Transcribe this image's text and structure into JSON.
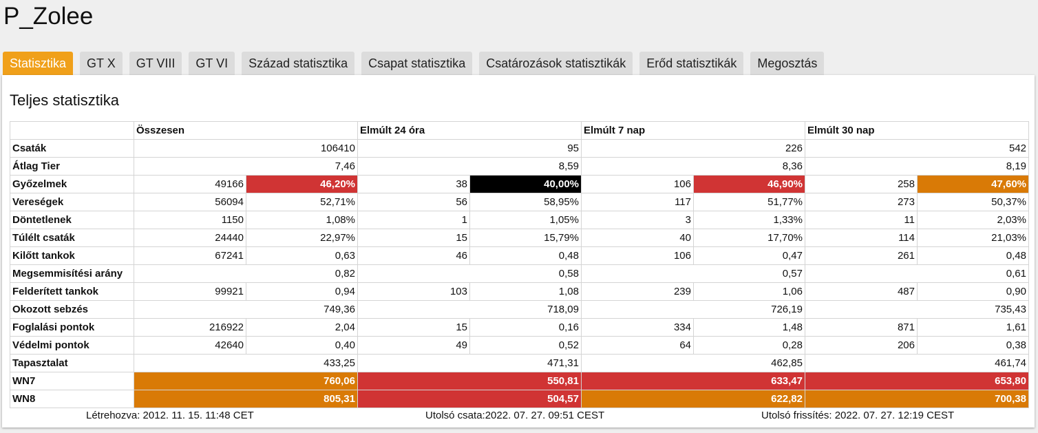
{
  "title": "P_Zolee",
  "tabs": [
    "Statisztika",
    "GT X",
    "GT VIII",
    "GT VI",
    "Század statisztika",
    "Csapat statisztika",
    "Csatározások statisztikák",
    "Erőd statisztikák",
    "Megosztás"
  ],
  "active_tab": "Statisztika",
  "section_title": "Teljes statisztika",
  "columns": [
    "Összesen",
    "Elmúlt 24 óra",
    "Elmúlt 7 nap",
    "Elmúlt 30 nap"
  ],
  "colors": {
    "red": "#d03434",
    "black": "#000000",
    "orange": "#d97a06",
    "tab_active": "#f0a01a"
  },
  "rows": [
    {
      "label": "Csaták",
      "type": "single",
      "cells": [
        {
          "v": "106410"
        },
        {
          "v": "95"
        },
        {
          "v": "226"
        },
        {
          "v": "542"
        }
      ]
    },
    {
      "label": "Átlag Tier",
      "type": "single",
      "cells": [
        {
          "v": "7,46"
        },
        {
          "v": "8,59"
        },
        {
          "v": "8,36"
        },
        {
          "v": "8,19"
        }
      ]
    },
    {
      "label": "Győzelmek",
      "type": "pair",
      "cells": [
        {
          "n": "49166",
          "p": "46,20%",
          "c": "red"
        },
        {
          "n": "38",
          "p": "40,00%",
          "c": "black"
        },
        {
          "n": "106",
          "p": "46,90%",
          "c": "red"
        },
        {
          "n": "258",
          "p": "47,60%",
          "c": "orange"
        }
      ]
    },
    {
      "label": "Vereségek",
      "type": "pair",
      "cells": [
        {
          "n": "56094",
          "p": "52,71%"
        },
        {
          "n": "56",
          "p": "58,95%"
        },
        {
          "n": "117",
          "p": "51,77%"
        },
        {
          "n": "273",
          "p": "50,37%"
        }
      ]
    },
    {
      "label": "Döntetlenek",
      "type": "pair",
      "cells": [
        {
          "n": "1150",
          "p": "1,08%"
        },
        {
          "n": "1",
          "p": "1,05%"
        },
        {
          "n": "3",
          "p": "1,33%"
        },
        {
          "n": "11",
          "p": "2,03%"
        }
      ]
    },
    {
      "label": "Túlélt csaták",
      "type": "pair",
      "cells": [
        {
          "n": "24440",
          "p": "22,97%"
        },
        {
          "n": "15",
          "p": "15,79%"
        },
        {
          "n": "40",
          "p": "17,70%"
        },
        {
          "n": "114",
          "p": "21,03%"
        }
      ]
    },
    {
      "label": "Kilőtt tankok",
      "type": "pair",
      "cells": [
        {
          "n": "67241",
          "p": "0,63"
        },
        {
          "n": "46",
          "p": "0,48"
        },
        {
          "n": "106",
          "p": "0,47"
        },
        {
          "n": "261",
          "p": "0,48"
        }
      ]
    },
    {
      "label": "Megsemmisítési arány",
      "type": "single",
      "cells": [
        {
          "v": "0,82"
        },
        {
          "v": "0,58"
        },
        {
          "v": "0,57"
        },
        {
          "v": "0,61"
        }
      ]
    },
    {
      "label": "Felderített tankok",
      "type": "pair",
      "cells": [
        {
          "n": "99921",
          "p": "0,94"
        },
        {
          "n": "103",
          "p": "1,08"
        },
        {
          "n": "239",
          "p": "1,06"
        },
        {
          "n": "487",
          "p": "0,90"
        }
      ]
    },
    {
      "label": "Okozott sebzés",
      "type": "single",
      "cells": [
        {
          "v": "749,36"
        },
        {
          "v": "718,09"
        },
        {
          "v": "726,19"
        },
        {
          "v": "735,43"
        }
      ]
    },
    {
      "label": "Foglalási pontok",
      "type": "pair",
      "cells": [
        {
          "n": "216922",
          "p": "2,04"
        },
        {
          "n": "15",
          "p": "0,16"
        },
        {
          "n": "334",
          "p": "1,48"
        },
        {
          "n": "871",
          "p": "1,61"
        }
      ]
    },
    {
      "label": "Védelmi pontok",
      "type": "pair",
      "cells": [
        {
          "n": "42640",
          "p": "0,40"
        },
        {
          "n": "49",
          "p": "0,52"
        },
        {
          "n": "64",
          "p": "0,28"
        },
        {
          "n": "206",
          "p": "0,38"
        }
      ]
    },
    {
      "label": "Tapasztalat",
      "type": "single",
      "cells": [
        {
          "v": "433,25"
        },
        {
          "v": "471,31"
        },
        {
          "v": "462,85"
        },
        {
          "v": "461,74"
        }
      ]
    },
    {
      "label": "WN7",
      "type": "single",
      "cells": [
        {
          "v": "760,06",
          "c": "orange"
        },
        {
          "v": "550,81",
          "c": "red"
        },
        {
          "v": "633,47",
          "c": "red"
        },
        {
          "v": "653,80",
          "c": "red"
        }
      ]
    },
    {
      "label": "WN8",
      "type": "single",
      "cells": [
        {
          "v": "805,31",
          "c": "orange"
        },
        {
          "v": "504,57",
          "c": "red"
        },
        {
          "v": "622,82",
          "c": "orange"
        },
        {
          "v": "700,38",
          "c": "orange"
        }
      ]
    }
  ],
  "footer": {
    "created": "Létrehozva: 2012. 11. 15. 11:48 CET",
    "last_battle": "Utolsó csata:2022. 07. 27. 09:51 CEST",
    "last_update": "Utolsó frissítés: 2022. 07. 27. 12:19 CEST"
  }
}
